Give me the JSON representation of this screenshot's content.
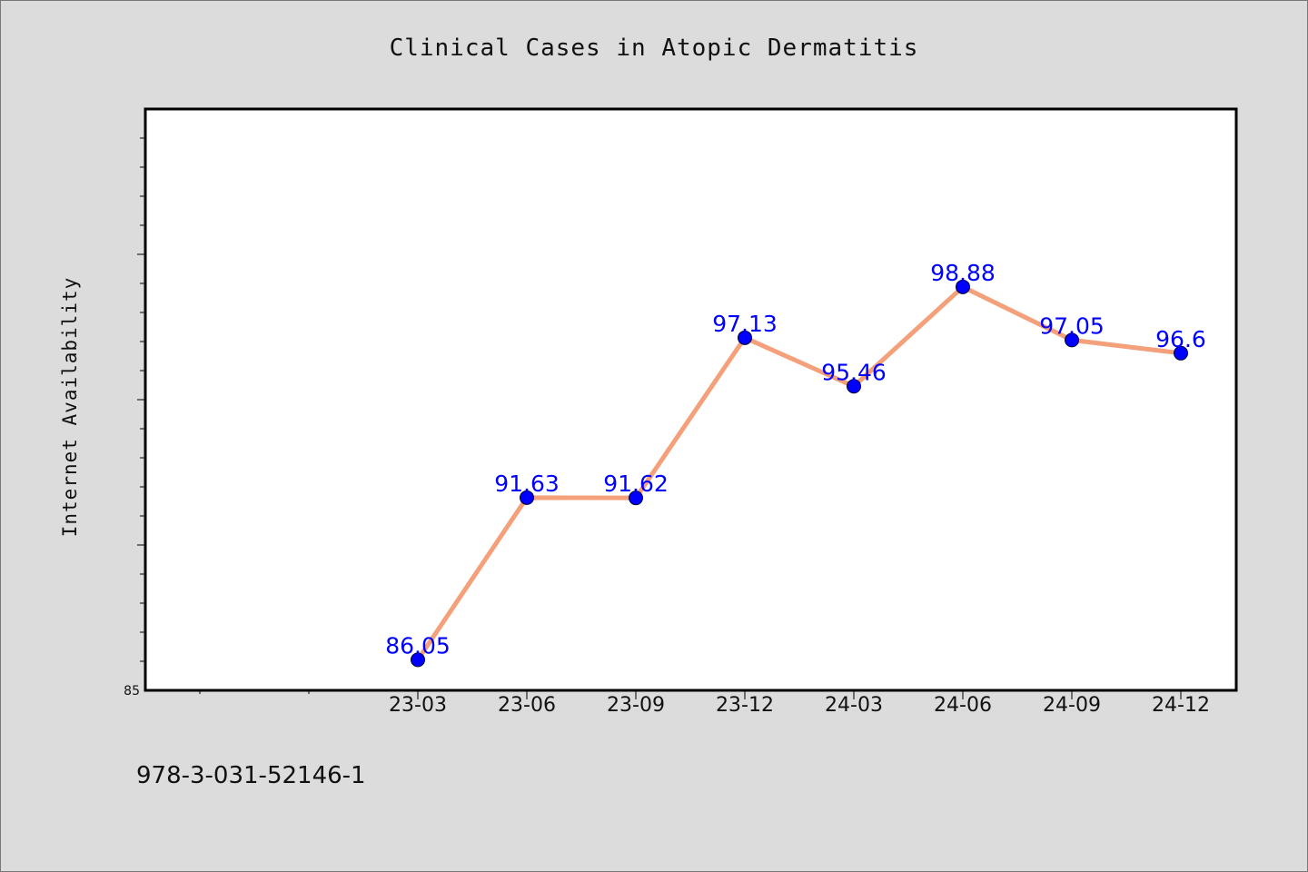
{
  "chart_data": {
    "type": "line",
    "title": "Clinical Cases in Atopic Dermatitis",
    "xlabel": "",
    "ylabel": "Internet Availability",
    "categories": [
      "23-03",
      "23-06",
      "23-09",
      "23-12",
      "24-03",
      "24-06",
      "24-09",
      "24-12"
    ],
    "series": [
      {
        "values": [
          86.05,
          91.63,
          91.62,
          97.13,
          95.46,
          98.88,
          97.05,
          96.6
        ],
        "labels": [
          "86.05",
          "91.63",
          "91.62",
          "97.13",
          "95.46",
          "98.88",
          "97.05",
          "96.6"
        ],
        "line_color": "#f4a07a",
        "marker_color": "#0000ff"
      }
    ],
    "ylim": [
      85,
      105
    ],
    "yticks": [
      "85"
    ],
    "grid": false,
    "legend": "none"
  },
  "footer_text": "978-3-031-52146-1"
}
